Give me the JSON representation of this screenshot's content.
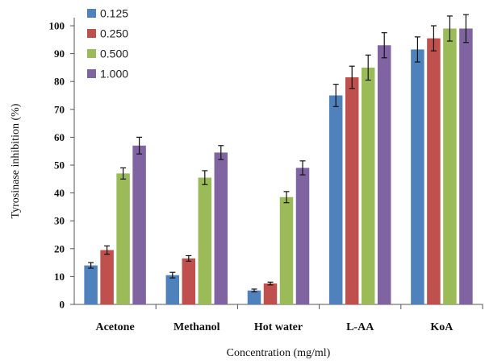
{
  "chart_data": {
    "type": "bar",
    "categories": [
      "Acetone",
      "Methanol",
      "Hot water",
      "L-AA",
      "KoA"
    ],
    "series": [
      {
        "name": "0.125",
        "color": "#4f81bd",
        "values": [
          14,
          10.5,
          5,
          75,
          91.5
        ],
        "errors": [
          1,
          1,
          0.5,
          4,
          4.5
        ]
      },
      {
        "name": "0.250",
        "color": "#c0504d",
        "values": [
          19.5,
          16.5,
          7.5,
          81.5,
          95.5
        ],
        "errors": [
          1.5,
          1,
          0.5,
          4,
          4.5
        ]
      },
      {
        "name": "0.500",
        "color": "#9bbb59",
        "values": [
          47,
          45.5,
          38.5,
          85,
          99
        ],
        "errors": [
          2,
          2.5,
          2,
          4.5,
          4.5
        ]
      },
      {
        "name": "1.000",
        "color": "#8064a2",
        "values": [
          57,
          54.5,
          49,
          93,
          99
        ],
        "errors": [
          3,
          2.5,
          2.5,
          4.5,
          5
        ]
      }
    ],
    "ylabel": "Tyrosinase inhibition (%)",
    "xlabel": "Concentration (mg/ml)",
    "ylim": [
      0,
      100
    ],
    "yticks": [
      0,
      10,
      20,
      30,
      40,
      50,
      60,
      70,
      80,
      90,
      100
    ],
    "grid": false,
    "legend_position": "top-left"
  }
}
